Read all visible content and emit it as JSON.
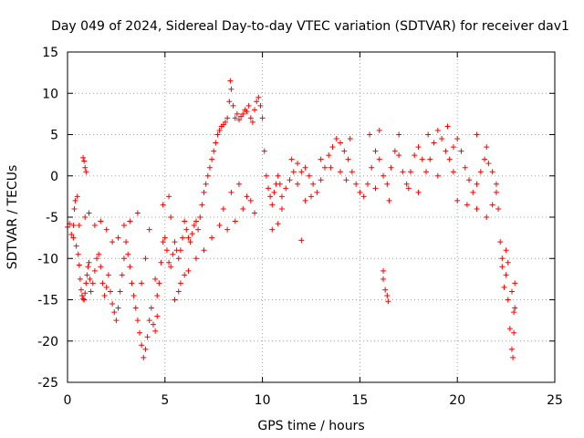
{
  "chart_data": {
    "type": "scatter",
    "title": "Day 049 of 2024, Sidereal Day-to-day VTEC variation (SDTVAR) for receiver dav1",
    "xlabel": "GPS time / hours",
    "ylabel": "SDTVAR / TECUs",
    "xlim": [
      0,
      25
    ],
    "ylim": [
      -25,
      15
    ],
    "xticks": [
      0,
      5,
      10,
      15,
      20,
      25
    ],
    "yticks": [
      -25,
      -20,
      -15,
      -10,
      -5,
      0,
      5,
      10,
      15
    ],
    "grid": true,
    "marker": "+",
    "colors": {
      "series": "#ff0000",
      "grid": "#a0a0a0",
      "axes": "#000000"
    },
    "series": [
      {
        "name": "dav1",
        "points": [
          [
            0.0,
            -6.2
          ],
          [
            0.1,
            -5.8
          ],
          [
            0.2,
            -7.1
          ],
          [
            0.3,
            -6.0
          ],
          [
            0.35,
            -4.0
          ],
          [
            0.4,
            -3.0
          ],
          [
            0.45,
            -8.5
          ],
          [
            0.5,
            -2.5
          ],
          [
            0.55,
            -9.5
          ],
          [
            0.6,
            -10.8
          ],
          [
            0.65,
            -12.5
          ],
          [
            0.7,
            -13.8
          ],
          [
            0.75,
            -14.5
          ],
          [
            0.8,
            -14.9
          ],
          [
            0.85,
            -15.0
          ],
          [
            0.9,
            -14.2
          ],
          [
            0.95,
            -13.0
          ],
          [
            1.0,
            -12.0
          ],
          [
            1.05,
            -11.0
          ],
          [
            1.1,
            -10.5
          ],
          [
            1.15,
            -12.5
          ],
          [
            1.2,
            -14.0
          ],
          [
            1.3,
            -13.0
          ],
          [
            1.4,
            -11.5
          ],
          [
            1.5,
            -10.0
          ],
          [
            1.6,
            -9.5
          ],
          [
            1.7,
            -11.0
          ],
          [
            1.8,
            -13.0
          ],
          [
            1.9,
            -14.5
          ],
          [
            2.0,
            -13.5
          ],
          [
            2.1,
            -12.0
          ],
          [
            2.2,
            -14.0
          ],
          [
            2.3,
            -15.5
          ],
          [
            2.4,
            -16.5
          ],
          [
            2.5,
            -17.5
          ],
          [
            2.6,
            -16.0
          ],
          [
            2.7,
            -14.0
          ],
          [
            2.8,
            -12.0
          ],
          [
            2.9,
            -10.0
          ],
          [
            3.0,
            -8.0
          ],
          [
            3.1,
            -9.5
          ],
          [
            3.2,
            -11.0
          ],
          [
            3.3,
            -13.0
          ],
          [
            3.4,
            -14.5
          ],
          [
            3.5,
            -16.0
          ],
          [
            3.6,
            -17.5
          ],
          [
            3.7,
            -19.0
          ],
          [
            3.8,
            -20.5
          ],
          [
            3.9,
            -22.0
          ],
          [
            4.0,
            -21.0
          ],
          [
            4.1,
            -19.5
          ],
          [
            4.2,
            -17.5
          ],
          [
            4.3,
            -16.0
          ],
          [
            4.4,
            -18.0
          ],
          [
            4.5,
            -18.8
          ],
          [
            4.6,
            -17.0
          ],
          [
            4.7,
            -13.0
          ],
          [
            4.8,
            -10.5
          ],
          [
            4.9,
            -8.0
          ],
          [
            5.0,
            -7.5
          ],
          [
            5.1,
            -9.0
          ],
          [
            5.2,
            -10.5
          ],
          [
            5.3,
            -11.0
          ],
          [
            5.4,
            -9.5
          ],
          [
            5.5,
            -8.0
          ],
          [
            5.6,
            -9.0
          ],
          [
            5.7,
            -10.0
          ],
          [
            5.8,
            -9.0
          ],
          [
            5.9,
            -7.5
          ],
          [
            6.0,
            -5.5
          ],
          [
            6.1,
            -6.5
          ],
          [
            6.2,
            -7.5
          ],
          [
            6.3,
            -8.0
          ],
          [
            6.4,
            -7.0
          ],
          [
            6.5,
            -6.0
          ],
          [
            6.6,
            -5.5
          ],
          [
            6.7,
            -6.5
          ],
          [
            6.8,
            -5.0
          ],
          [
            6.9,
            -3.5
          ],
          [
            7.0,
            -2.0
          ],
          [
            7.1,
            -1.0
          ],
          [
            7.2,
            0.0
          ],
          [
            7.3,
            1.0
          ],
          [
            7.4,
            2.0
          ],
          [
            7.5,
            3.0
          ],
          [
            7.6,
            4.0
          ],
          [
            7.7,
            5.0
          ],
          [
            7.8,
            5.5
          ],
          [
            7.9,
            6.0
          ],
          [
            8.0,
            6.2
          ],
          [
            8.1,
            6.5
          ],
          [
            8.2,
            7.0
          ],
          [
            8.3,
            9.0
          ],
          [
            8.35,
            11.5
          ],
          [
            8.4,
            10.5
          ],
          [
            8.5,
            8.5
          ],
          [
            8.6,
            7.0
          ],
          [
            8.7,
            7.5
          ],
          [
            8.8,
            6.8
          ],
          [
            8.9,
            7.2
          ],
          [
            9.0,
            7.5
          ],
          [
            9.1,
            8.0
          ],
          [
            9.2,
            7.8
          ],
          [
            9.3,
            8.5
          ],
          [
            9.4,
            7.0
          ],
          [
            9.5,
            6.5
          ],
          [
            9.6,
            8.0
          ],
          [
            9.7,
            9.0
          ],
          [
            9.8,
            9.5
          ],
          [
            9.9,
            8.5
          ],
          [
            10.0,
            7.0
          ],
          [
            10.1,
            3.0
          ],
          [
            10.2,
            0.0
          ],
          [
            10.3,
            -1.5
          ],
          [
            10.4,
            -2.5
          ],
          [
            10.5,
            -3.5
          ],
          [
            10.6,
            -2.0
          ],
          [
            10.7,
            -1.0
          ],
          [
            10.8,
            0.0
          ],
          [
            10.9,
            -1.0
          ],
          [
            11.0,
            -2.5
          ],
          [
            11.2,
            -1.5
          ],
          [
            11.4,
            -0.5
          ],
          [
            11.6,
            0.5
          ],
          [
            11.8,
            -1.0
          ],
          [
            12.0,
            0.5
          ],
          [
            12.2,
            1.0
          ],
          [
            12.4,
            0.0
          ],
          [
            12.6,
            -1.0
          ],
          [
            12.8,
            -2.0
          ],
          [
            13.0,
            -0.5
          ],
          [
            13.2,
            1.0
          ],
          [
            13.4,
            2.5
          ],
          [
            13.6,
            3.5
          ],
          [
            13.8,
            4.5
          ],
          [
            14.0,
            4.0
          ],
          [
            14.2,
            3.0
          ],
          [
            14.4,
            2.0
          ],
          [
            14.6,
            0.5
          ],
          [
            14.8,
            -1.0
          ],
          [
            15.0,
            -2.0
          ],
          [
            15.2,
            -2.5
          ],
          [
            15.4,
            -1.0
          ],
          [
            15.6,
            1.0
          ],
          [
            15.8,
            3.0
          ],
          [
            16.0,
            2.0
          ],
          [
            16.2,
            0.0
          ],
          [
            16.4,
            -1.0
          ],
          [
            16.6,
            1.0
          ],
          [
            16.8,
            3.0
          ],
          [
            17.0,
            2.5
          ],
          [
            17.2,
            0.5
          ],
          [
            17.4,
            -1.0
          ],
          [
            17.6,
            0.5
          ],
          [
            17.8,
            2.5
          ],
          [
            18.0,
            3.5
          ],
          [
            18.2,
            2.0
          ],
          [
            18.4,
            0.5
          ],
          [
            18.6,
            2.0
          ],
          [
            18.8,
            4.0
          ],
          [
            19.0,
            5.5
          ],
          [
            19.2,
            4.5
          ],
          [
            19.4,
            3.0
          ],
          [
            19.6,
            2.0
          ],
          [
            19.8,
            3.5
          ],
          [
            20.0,
            4.5
          ],
          [
            20.2,
            3.0
          ],
          [
            20.4,
            1.0
          ],
          [
            20.6,
            -0.5
          ],
          [
            20.8,
            -2.0
          ],
          [
            21.0,
            -1.0
          ],
          [
            21.2,
            0.5
          ],
          [
            21.4,
            2.0
          ],
          [
            21.6,
            1.5
          ],
          [
            21.8,
            0.5
          ],
          [
            22.0,
            -1.0
          ],
          [
            22.1,
            -4.0
          ],
          [
            22.2,
            -8.0
          ],
          [
            22.3,
            -11.0
          ],
          [
            22.4,
            -13.5
          ],
          [
            22.5,
            -12.0
          ],
          [
            22.6,
            -15.0
          ],
          [
            22.7,
            -18.5
          ],
          [
            22.8,
            -21.0
          ],
          [
            22.85,
            -22.0
          ],
          [
            22.9,
            -19.0
          ],
          [
            22.95,
            -16.0
          ],
          [
            0.8,
            2.2
          ],
          [
            0.85,
            1.8
          ],
          [
            0.9,
            1.0
          ],
          [
            0.95,
            0.5
          ],
          [
            3.6,
            -4.5
          ],
          [
            4.2,
            -6.5
          ],
          [
            5.3,
            -5.0
          ],
          [
            4.9,
            -3.5
          ],
          [
            5.2,
            -2.5
          ],
          [
            12.0,
            -7.8
          ],
          [
            16.2,
            -12.5
          ],
          [
            16.3,
            -13.8
          ],
          [
            16.4,
            -14.5
          ],
          [
            16.45,
            -15.2
          ],
          [
            16.2,
            -11.5
          ],
          [
            10.5,
            -6.5
          ],
          [
            10.8,
            -5.8
          ],
          [
            11.0,
            -4.0
          ],
          [
            9.2,
            -2.5
          ],
          [
            9.0,
            -4.0
          ],
          [
            8.6,
            -5.5
          ],
          [
            8.2,
            -6.5
          ],
          [
            7.8,
            -6.0
          ],
          [
            7.4,
            -7.5
          ],
          [
            7.0,
            -9.0
          ],
          [
            6.6,
            -10.0
          ],
          [
            6.2,
            -11.5
          ],
          [
            5.8,
            -13.0
          ],
          [
            5.5,
            -15.0
          ],
          [
            5.7,
            -14.0
          ],
          [
            6.0,
            -12.0
          ],
          [
            1.7,
            -5.5
          ],
          [
            2.0,
            -6.5
          ],
          [
            2.3,
            -8.0
          ],
          [
            2.6,
            -7.5
          ],
          [
            2.9,
            -6.0
          ],
          [
            3.2,
            -5.5
          ],
          [
            1.4,
            -6.0
          ],
          [
            1.1,
            -4.5
          ],
          [
            0.9,
            -5.0
          ],
          [
            0.6,
            -6.0
          ],
          [
            0.3,
            -7.5
          ],
          [
            3.8,
            -13.0
          ],
          [
            4.0,
            -10.0
          ],
          [
            4.5,
            -12.5
          ],
          [
            4.6,
            -14.5
          ],
          [
            13.0,
            2.0
          ],
          [
            13.5,
            1.0
          ],
          [
            14.5,
            4.5
          ],
          [
            15.5,
            5.0
          ],
          [
            16.0,
            5.5
          ],
          [
            17.0,
            5.0
          ],
          [
            18.5,
            5.0
          ],
          [
            19.5,
            6.0
          ],
          [
            21.0,
            5.0
          ],
          [
            21.5,
            3.5
          ],
          [
            20.0,
            -3.0
          ],
          [
            20.5,
            -3.5
          ],
          [
            21.0,
            -4.0
          ],
          [
            21.5,
            -5.0
          ],
          [
            21.8,
            -3.5
          ],
          [
            22.0,
            -2.0
          ],
          [
            22.3,
            -10.0
          ],
          [
            22.5,
            -9.0
          ],
          [
            22.6,
            -10.5
          ],
          [
            22.8,
            -14.0
          ],
          [
            22.9,
            -16.5
          ],
          [
            22.95,
            -13.0
          ],
          [
            8.0,
            -4.0
          ],
          [
            8.4,
            -2.0
          ],
          [
            8.8,
            -1.0
          ],
          [
            9.4,
            -3.0
          ],
          [
            9.6,
            -4.5
          ],
          [
            11.5,
            2.0
          ],
          [
            11.8,
            1.5
          ],
          [
            12.5,
            -2.5
          ],
          [
            12.2,
            -3.0
          ],
          [
            14.0,
            0.5
          ],
          [
            14.3,
            -0.5
          ],
          [
            15.8,
            -1.5
          ],
          [
            16.5,
            -3.0
          ],
          [
            17.5,
            -1.5
          ],
          [
            18.0,
            -2.0
          ],
          [
            19.0,
            0.0
          ],
          [
            19.8,
            0.5
          ]
        ]
      }
    ]
  }
}
